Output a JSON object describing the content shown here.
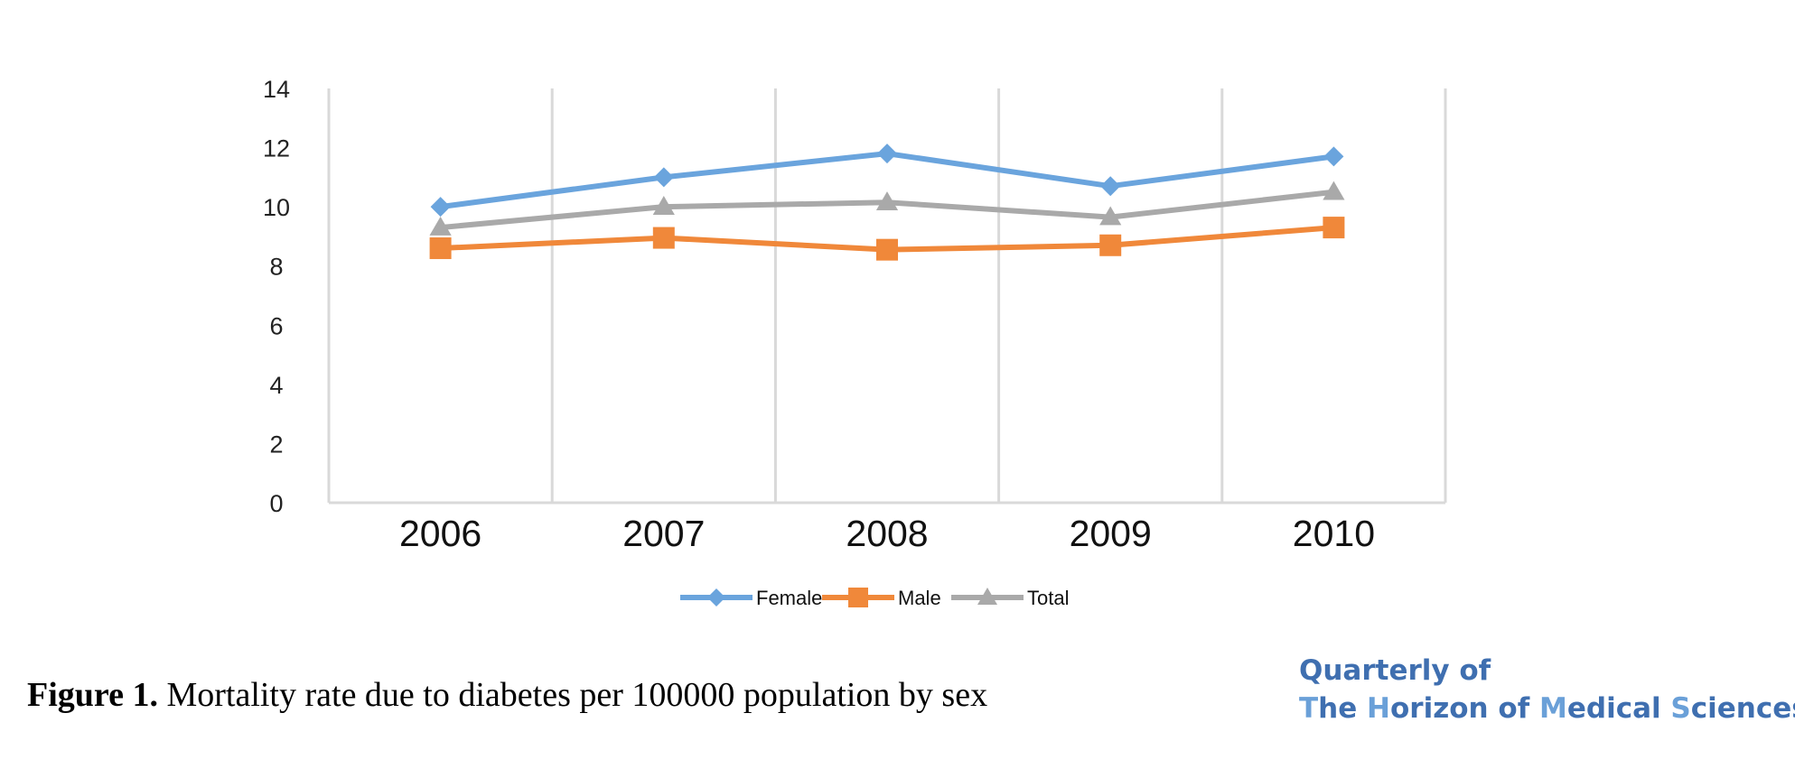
{
  "chart_data": {
    "type": "line",
    "categories": [
      "2006",
      "2007",
      "2008",
      "2009",
      "2010"
    ],
    "series": [
      {
        "name": "Female",
        "values": [
          10.0,
          11.0,
          11.8,
          10.7,
          11.7
        ],
        "color": "#6aa4dd",
        "marker": "diamond"
      },
      {
        "name": "Male",
        "values": [
          8.6,
          8.95,
          8.55,
          8.7,
          9.3
        ],
        "color": "#f0883a",
        "marker": "square"
      },
      {
        "name": "Total",
        "values": [
          9.3,
          10.0,
          10.15,
          9.65,
          10.5
        ],
        "color": "#a9a9a9",
        "marker": "triangle"
      }
    ],
    "yticks": [
      "0",
      "2",
      "4",
      "6",
      "8",
      "10",
      "12",
      "14"
    ],
    "ylim": [
      0,
      14
    ],
    "grid": "vertical",
    "legend": "bottom"
  },
  "caption": {
    "label": "Figure 1.",
    "text": " Mortality rate due to diabetes per 100000 population by sex"
  },
  "journal": {
    "line1": "Quarterly of",
    "line2_parts": [
      "T",
      "he ",
      "H",
      "orizon of ",
      "M",
      "edical ",
      "S",
      "ciences"
    ]
  }
}
